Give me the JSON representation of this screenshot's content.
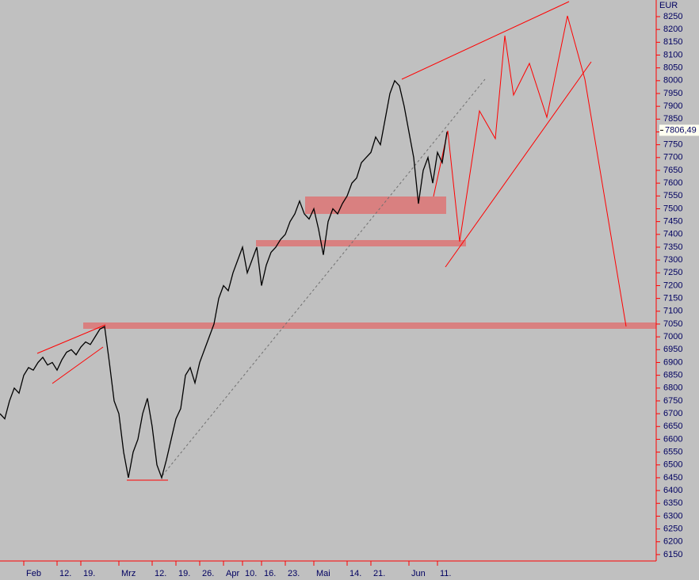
{
  "chart_data": {
    "type": "line",
    "currency": "EUR",
    "last_price": {
      "value": 7806.49,
      "label": "7806,49"
    },
    "x": [
      0,
      1,
      2,
      3,
      4,
      5,
      6,
      7,
      8,
      9,
      10,
      11,
      12,
      13,
      14,
      15,
      16,
      17,
      18,
      19,
      20,
      21,
      22,
      23,
      24,
      25,
      26,
      27,
      28,
      29,
      30,
      31,
      32,
      33,
      34,
      35,
      36,
      37,
      38,
      39,
      40,
      41,
      42,
      43,
      44,
      45,
      46,
      47,
      48,
      49,
      50,
      51,
      52,
      53,
      54,
      55,
      56,
      57,
      58,
      59,
      60,
      61,
      62,
      63,
      64,
      65,
      66,
      67,
      68,
      69,
      70,
      71,
      72,
      73,
      74,
      75,
      76,
      77,
      78,
      79,
      80,
      81,
      82,
      83,
      84,
      85,
      86,
      87,
      88,
      89,
      90,
      91,
      92,
      93,
      94
    ],
    "series": [
      {
        "color": "#000000",
        "values": [
          6700,
          6680,
          6750,
          6800,
          6780,
          6850,
          6880,
          6870,
          6900,
          6920,
          6890,
          6900,
          6870,
          6910,
          6940,
          6950,
          6930,
          6960,
          6980,
          6970,
          7000,
          7030,
          7040,
          6900,
          6750,
          6700,
          6550,
          6450,
          6550,
          6600,
          6700,
          6760,
          6650,
          6500,
          6450,
          6520,
          6600,
          6680,
          6720,
          6850,
          6880,
          6820,
          6900,
          6950,
          7000,
          7050,
          7150,
          7200,
          7180,
          7250,
          7300,
          7350,
          7250,
          7300,
          7350,
          7200,
          7280,
          7330,
          7350,
          7380,
          7400,
          7450,
          7480,
          7530,
          7480,
          7460,
          7500,
          7420,
          7320,
          7450,
          7500,
          7480,
          7520,
          7550,
          7600,
          7620,
          7680,
          7700,
          7720,
          7780,
          7750,
          7850,
          7950,
          8000,
          7980,
          7900,
          7800,
          7700,
          7520,
          7650,
          7700,
          7600,
          7720,
          7680,
          7800
        ]
      }
    ],
    "xlim": [
      0,
      138
    ],
    "xticks": [
      {
        "value": 5,
        "label": "Feb"
      },
      {
        "value": 12,
        "label": "12."
      },
      {
        "value": 17,
        "label": "19."
      },
      {
        "value": 25,
        "label": "Mrz"
      },
      {
        "value": 32,
        "label": "12."
      },
      {
        "value": 37,
        "label": "19."
      },
      {
        "value": 42,
        "label": "26."
      },
      {
        "value": 47,
        "label": "Apr"
      },
      {
        "value": 51,
        "label": "10."
      },
      {
        "value": 55,
        "label": "16."
      },
      {
        "value": 60,
        "label": "23."
      },
      {
        "value": 66,
        "label": "Mai"
      },
      {
        "value": 73,
        "label": "14."
      },
      {
        "value": 78,
        "label": "21."
      },
      {
        "value": 86,
        "label": "Jun"
      },
      {
        "value": 92,
        "label": "11."
      }
    ],
    "ylim": [
      6125,
      8315
    ],
    "yticks": [
      6150,
      6200,
      6250,
      6300,
      6350,
      6400,
      6450,
      6500,
      6550,
      6600,
      6650,
      6700,
      6750,
      6800,
      6850,
      6900,
      6950,
      7000,
      7050,
      7100,
      7150,
      7200,
      7250,
      7300,
      7350,
      7400,
      7450,
      7500,
      7550,
      7600,
      7650,
      7700,
      7750,
      7800,
      7850,
      7900,
      7950,
      8000,
      8050,
      8100,
      8150,
      8200,
      8250
    ]
  }
}
